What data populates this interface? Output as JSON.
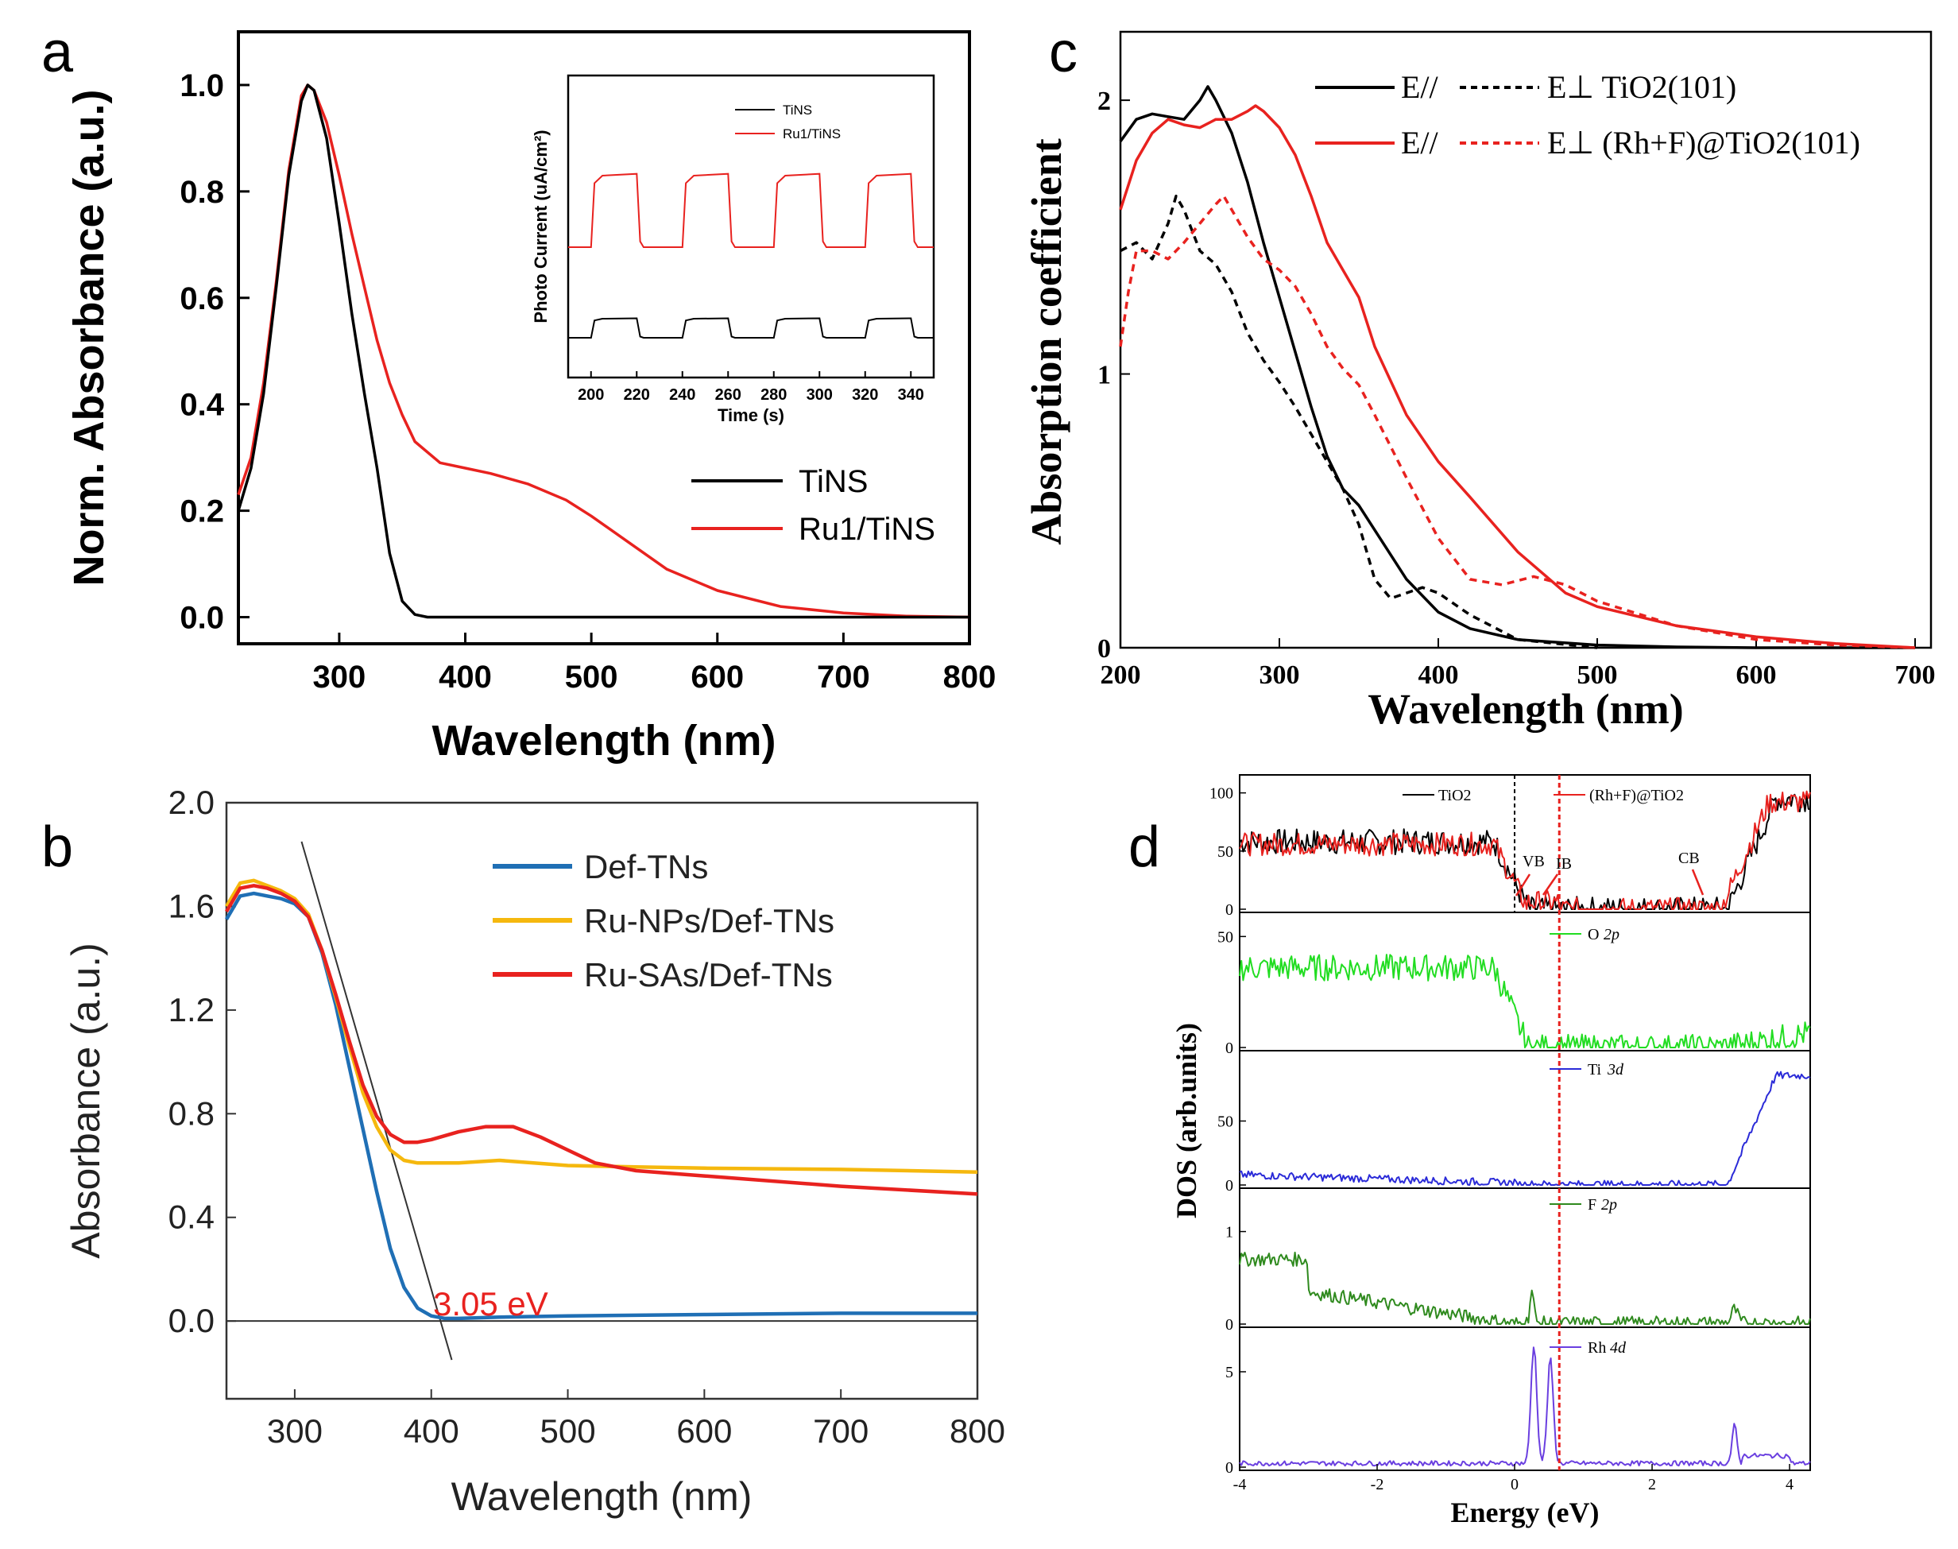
{
  "panels": {
    "a": "a",
    "b": "b",
    "c": "c",
    "d": "d"
  },
  "chart_data": [
    {
      "id": "a",
      "type": "line",
      "title": "",
      "xlabel": "Wavelength (nm)",
      "ylabel": "Norm. Absorbance (a.u.)",
      "xlim": [
        220,
        800
      ],
      "ylim": [
        -0.05,
        1.1
      ],
      "xticks": [
        300,
        400,
        500,
        600,
        700,
        800
      ],
      "yticks": [
        0.0,
        0.2,
        0.4,
        0.6,
        0.8,
        1.0
      ],
      "legend_position": "bottom-right",
      "series": [
        {
          "name": "TiNS",
          "color": "#000000",
          "x": [
            220,
            230,
            240,
            250,
            260,
            270,
            275,
            280,
            290,
            300,
            310,
            320,
            330,
            340,
            350,
            360,
            370,
            400,
            500,
            600,
            700,
            800
          ],
          "y": [
            0.2,
            0.28,
            0.42,
            0.62,
            0.83,
            0.97,
            1.0,
            0.99,
            0.9,
            0.74,
            0.57,
            0.42,
            0.28,
            0.12,
            0.03,
            0.005,
            0,
            0,
            0,
            0,
            0,
            0
          ]
        },
        {
          "name": "Ru1/TiNS",
          "color": "#e8221f",
          "x": [
            220,
            230,
            240,
            250,
            260,
            270,
            275,
            280,
            290,
            300,
            310,
            320,
            330,
            340,
            350,
            360,
            380,
            400,
            420,
            450,
            480,
            500,
            530,
            560,
            600,
            650,
            700,
            750,
            800
          ],
          "y": [
            0.23,
            0.3,
            0.44,
            0.63,
            0.84,
            0.98,
            1.0,
            0.99,
            0.93,
            0.83,
            0.72,
            0.62,
            0.52,
            0.44,
            0.38,
            0.33,
            0.29,
            0.28,
            0.27,
            0.25,
            0.22,
            0.19,
            0.14,
            0.09,
            0.05,
            0.02,
            0.008,
            0.002,
            0.0
          ]
        }
      ],
      "inset": {
        "type": "line",
        "xlabel": "Time (s)",
        "ylabel": "Photo Current (uA/cm²)",
        "xlim": [
          190,
          350
        ],
        "xticks": [
          200,
          220,
          240,
          260,
          280,
          300,
          320,
          340
        ],
        "legend": [
          "TiNS",
          "Ru1/TiNS"
        ],
        "series": [
          {
            "name": "TiNS",
            "color": "#000000",
            "on_level": 0.18,
            "off_level": 0.1
          },
          {
            "name": "Ru1/TiNS",
            "color": "#e8221f",
            "on_level": 0.78,
            "off_level": 0.48
          }
        ],
        "light_on_intervals": [
          [
            200,
            220
          ],
          [
            240,
            260
          ],
          [
            280,
            300
          ],
          [
            320,
            340
          ]
        ]
      }
    },
    {
      "id": "b",
      "type": "line",
      "title": "",
      "xlabel": "Wavelength (nm)",
      "ylabel": "Absorbance (a.u.)",
      "xlim": [
        250,
        800
      ],
      "ylim": [
        -0.3,
        2.0
      ],
      "xticks": [
        300,
        400,
        500,
        600,
        700,
        800
      ],
      "yticks": [
        0.0,
        0.4,
        0.8,
        1.2,
        1.6,
        2.0
      ],
      "ytick_labels": [
        "0.0",
        "0.4",
        "0.8",
        "1.2",
        "1.6",
        "2.0"
      ],
      "legend_position": "top-right",
      "annotation": "3.05 eV",
      "annotation_color": "#e8221f",
      "tangent_line": {
        "x": [
          305,
          415
        ],
        "y": [
          1.85,
          -0.15
        ]
      },
      "series": [
        {
          "name": "Def-TNs",
          "color": "#1f6fb5",
          "x": [
            250,
            260,
            270,
            280,
            290,
            300,
            310,
            320,
            330,
            340,
            350,
            360,
            370,
            380,
            390,
            400,
            410,
            420,
            450,
            500,
            600,
            700,
            800
          ],
          "y": [
            1.55,
            1.64,
            1.65,
            1.64,
            1.63,
            1.61,
            1.56,
            1.42,
            1.22,
            0.98,
            0.74,
            0.5,
            0.28,
            0.13,
            0.05,
            0.02,
            0.01,
            0.01,
            0.015,
            0.02,
            0.025,
            0.03,
            0.03
          ]
        },
        {
          "name": "Ru-NPs/Def-TNs",
          "color": "#f5b80e",
          "x": [
            250,
            260,
            270,
            280,
            290,
            300,
            310,
            320,
            330,
            340,
            350,
            360,
            370,
            380,
            390,
            400,
            420,
            450,
            500,
            550,
            600,
            700,
            800
          ],
          "y": [
            1.6,
            1.69,
            1.7,
            1.68,
            1.66,
            1.63,
            1.57,
            1.43,
            1.25,
            1.06,
            0.88,
            0.75,
            0.66,
            0.62,
            0.61,
            0.61,
            0.61,
            0.62,
            0.6,
            0.595,
            0.59,
            0.585,
            0.575
          ]
        },
        {
          "name": "Ru-SAs/Def-TNs",
          "color": "#e8221f",
          "x": [
            250,
            260,
            270,
            280,
            290,
            300,
            310,
            320,
            330,
            340,
            350,
            360,
            370,
            380,
            390,
            400,
            420,
            440,
            460,
            480,
            500,
            520,
            550,
            600,
            700,
            800
          ],
          "y": [
            1.58,
            1.67,
            1.68,
            1.67,
            1.65,
            1.62,
            1.56,
            1.43,
            1.26,
            1.08,
            0.91,
            0.79,
            0.72,
            0.69,
            0.69,
            0.7,
            0.73,
            0.75,
            0.75,
            0.71,
            0.66,
            0.61,
            0.58,
            0.56,
            0.52,
            0.49
          ]
        }
      ]
    },
    {
      "id": "c",
      "type": "line",
      "title": "",
      "xlabel": "Wavelength (nm)",
      "ylabel": "Absorption coefficient",
      "xlim": [
        200,
        710
      ],
      "ylim": [
        0,
        2.25
      ],
      "xticks": [
        200,
        300,
        400,
        500,
        600,
        700
      ],
      "yticks": [
        0,
        1,
        2
      ],
      "legend_position": "top",
      "legend": [
        {
          "label": "E//",
          "style": "solid",
          "color": "#000000"
        },
        {
          "label": "E⊥ TiO2(101)",
          "style": "dashed",
          "color": "#000000"
        },
        {
          "label": "E//",
          "style": "solid",
          "color": "#e8221f"
        },
        {
          "label": "E⊥ (Rh+F)@TiO2(101)",
          "style": "dashed",
          "color": "#e8221f"
        }
      ],
      "series": [
        {
          "name": "E// TiO2(101)",
          "color": "#000000",
          "dash": false,
          "x": [
            200,
            210,
            220,
            230,
            240,
            250,
            255,
            260,
            270,
            280,
            290,
            300,
            310,
            320,
            330,
            340,
            350,
            360,
            380,
            400,
            420,
            450,
            500,
            550,
            600,
            700
          ],
          "y": [
            1.85,
            1.93,
            1.95,
            1.94,
            1.93,
            2.0,
            2.05,
            2.0,
            1.88,
            1.7,
            1.48,
            1.28,
            1.08,
            0.88,
            0.7,
            0.58,
            0.52,
            0.43,
            0.25,
            0.13,
            0.07,
            0.03,
            0.01,
            0.003,
            0.0,
            0.0
          ]
        },
        {
          "name": "E⊥ TiO2(101)",
          "color": "#000000",
          "dash": true,
          "x": [
            200,
            210,
            220,
            230,
            235,
            240,
            250,
            260,
            270,
            280,
            290,
            300,
            310,
            320,
            330,
            340,
            350,
            360,
            370,
            380,
            390,
            400,
            420,
            450,
            500
          ],
          "y": [
            1.45,
            1.48,
            1.42,
            1.55,
            1.65,
            1.6,
            1.45,
            1.4,
            1.3,
            1.15,
            1.05,
            0.97,
            0.88,
            0.78,
            0.68,
            0.58,
            0.45,
            0.25,
            0.18,
            0.2,
            0.22,
            0.2,
            0.12,
            0.03,
            0.0
          ]
        },
        {
          "name": "E// (Rh+F)@TiO2(101)",
          "color": "#e8221f",
          "dash": false,
          "x": [
            200,
            210,
            220,
            230,
            240,
            250,
            260,
            270,
            280,
            285,
            290,
            300,
            310,
            320,
            330,
            340,
            350,
            360,
            380,
            400,
            420,
            450,
            480,
            500,
            550,
            600,
            650,
            700
          ],
          "y": [
            1.6,
            1.78,
            1.88,
            1.93,
            1.91,
            1.9,
            1.93,
            1.93,
            1.96,
            1.98,
            1.96,
            1.9,
            1.8,
            1.65,
            1.48,
            1.38,
            1.28,
            1.1,
            0.85,
            0.68,
            0.55,
            0.35,
            0.2,
            0.15,
            0.08,
            0.04,
            0.015,
            0.0
          ]
        },
        {
          "name": "E⊥ (Rh+F)@TiO2(101)",
          "color": "#e8221f",
          "dash": true,
          "x": [
            200,
            205,
            210,
            220,
            230,
            240,
            250,
            260,
            265,
            270,
            280,
            290,
            300,
            310,
            320,
            330,
            340,
            350,
            360,
            380,
            400,
            420,
            440,
            460,
            480,
            500,
            550,
            600,
            650,
            700
          ],
          "y": [
            1.1,
            1.3,
            1.45,
            1.45,
            1.42,
            1.48,
            1.55,
            1.62,
            1.65,
            1.6,
            1.5,
            1.42,
            1.38,
            1.32,
            1.22,
            1.1,
            1.02,
            0.96,
            0.85,
            0.62,
            0.4,
            0.25,
            0.23,
            0.26,
            0.23,
            0.17,
            0.08,
            0.03,
            0.01,
            0.0
          ]
        }
      ]
    },
    {
      "id": "d",
      "type": "line",
      "title": "",
      "xlabel": "Energy (eV)",
      "ylabel": "DOS (arb.units)",
      "xlim": [
        -4,
        4.3
      ],
      "xticks": [
        -4,
        -2,
        0,
        2,
        4
      ],
      "fermi_line_x": 0.0,
      "ib_line_x": 0.65,
      "subplots": [
        {
          "name": "total",
          "yticks": [
            0,
            50,
            100
          ],
          "ylim": [
            0,
            110
          ],
          "legend": [
            "TiO2",
            "(Rh+F)@TiO2"
          ],
          "annotations": [
            "VB",
            "IB",
            "CB"
          ],
          "series": [
            {
              "name": "TiO2",
              "color": "#000000"
            },
            {
              "name": "(Rh+F)@TiO2",
              "color": "#e8221f"
            }
          ]
        },
        {
          "name": "O 2p",
          "label_prefix": "O",
          "label_orbital": "2p",
          "color": "#22dd22",
          "yticks": [
            0,
            50
          ],
          "ylim": [
            0,
            58
          ]
        },
        {
          "name": "Ti 3d",
          "label_prefix": "Ti",
          "label_orbital": "3d",
          "color": "#2b2bd8",
          "yticks": [
            0,
            50
          ],
          "ylim": [
            0,
            100
          ]
        },
        {
          "name": "F 2p",
          "label_prefix": "F",
          "label_orbital": "2p",
          "color": "#2f8a1e",
          "yticks": [
            0,
            1
          ],
          "ylim": [
            0,
            1.4
          ]
        },
        {
          "name": "Rh 4d",
          "label_prefix": "Rh",
          "label_orbital": "4d",
          "color": "#6a3fe0",
          "yticks": [
            0,
            5
          ],
          "ylim": [
            0,
            7
          ]
        }
      ]
    }
  ]
}
